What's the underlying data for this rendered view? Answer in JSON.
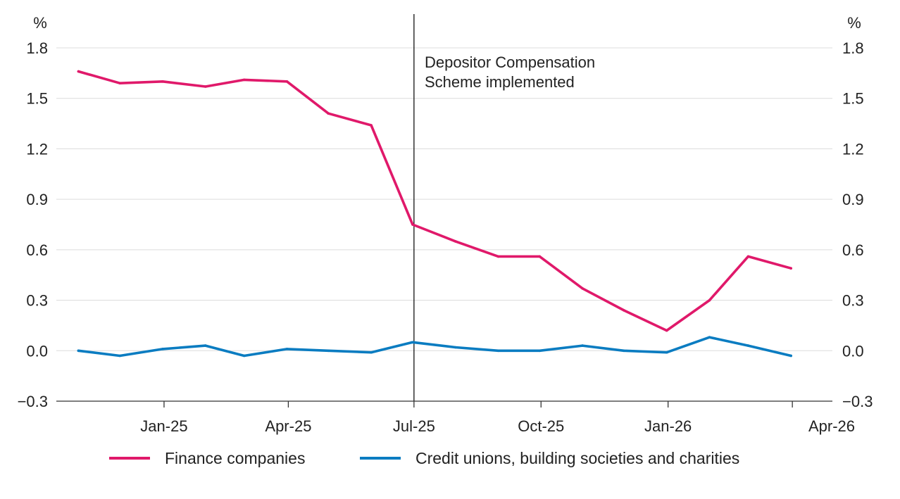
{
  "chart_data": {
    "type": "line",
    "title": "",
    "xlabel": "",
    "ylabel": "%",
    "ylabel_right": "%",
    "ylim": [
      -0.3,
      1.8
    ],
    "yticks": [
      -0.3,
      0.0,
      0.3,
      0.6,
      0.9,
      1.2,
      1.5,
      1.8
    ],
    "ytick_labels": [
      "−0.3",
      "0.0",
      "0.3",
      "0.6",
      "0.9",
      "1.2",
      "1.5",
      "1.8"
    ],
    "xlim": [
      "2024-10-15",
      "2026-04-30"
    ],
    "x_ticks": [
      {
        "date": "2025-01-01",
        "label": "Jan-25"
      },
      {
        "date": "2025-04-01",
        "label": "Apr-25"
      },
      {
        "date": "2025-07-01",
        "label": "Jul-25"
      },
      {
        "date": "2025-10-01",
        "label": "Oct-25"
      },
      {
        "date": "2026-01-01",
        "label": "Jan-26"
      },
      {
        "date": "2026-04-01",
        "label": "Apr-26"
      }
    ],
    "grid": true,
    "legend_position": "bottom",
    "x": [
      "2024-10-31",
      "2024-11-30",
      "2024-12-31",
      "2025-01-31",
      "2025-02-28",
      "2025-03-31",
      "2025-04-30",
      "2025-05-31",
      "2025-06-30",
      "2025-07-31",
      "2025-08-31",
      "2025-09-30",
      "2025-10-31",
      "2025-11-30",
      "2025-12-31",
      "2026-01-31",
      "2026-02-28",
      "2026-03-31",
      "2026-04-30"
    ],
    "series": [
      {
        "name": "Finance companies",
        "color": "#e0196a",
        "values": [
          1.66,
          1.59,
          1.6,
          1.57,
          1.61,
          1.6,
          1.41,
          1.34,
          0.75,
          0.65,
          0.56,
          0.56,
          0.37,
          0.24,
          0.12,
          0.3,
          0.56,
          0.49,
          null
        ]
      },
      {
        "name": "Credit unions, building societies and charities",
        "color": "#0a7cc1",
        "values": [
          0.0,
          -0.03,
          0.01,
          0.03,
          -0.03,
          0.01,
          0.0,
          -0.01,
          0.05,
          0.02,
          0.0,
          0.0,
          0.03,
          0.0,
          -0.01,
          0.08,
          0.03,
          -0.03,
          null
        ]
      }
    ],
    "annotations": [
      {
        "date": "2025-07-01",
        "text_lines": [
          "Depositor Compensation",
          "Scheme implemented"
        ]
      }
    ]
  }
}
